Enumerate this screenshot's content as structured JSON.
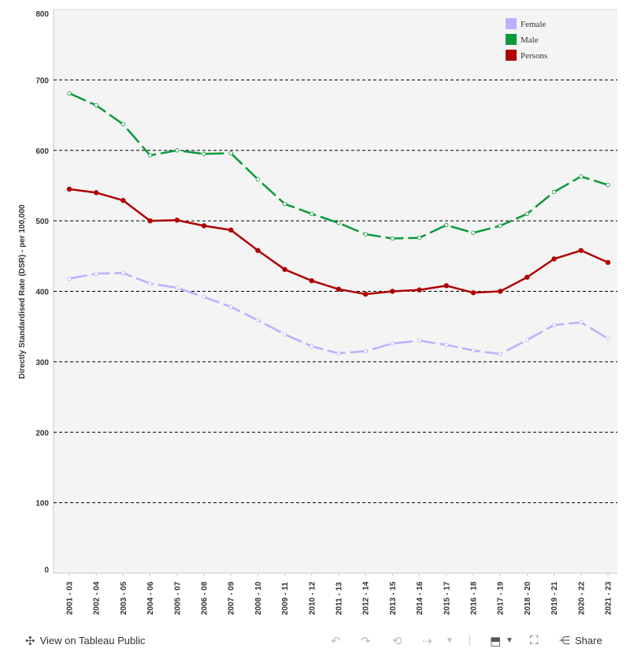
{
  "chart_data": {
    "type": "line",
    "title": "",
    "xlabel": "",
    "ylabel": "Directly Standardised Rate (DSR) - per 100,000",
    "ylim": [
      0,
      800
    ],
    "yticks": [
      0,
      100,
      200,
      300,
      400,
      500,
      600,
      700,
      800
    ],
    "categories": [
      "2001 - 03",
      "2002 - 04",
      "2003 - 05",
      "2004 - 06",
      "2005 - 07",
      "2006 - 08",
      "2007 - 09",
      "2008 - 10",
      "2009 - 11",
      "2010 - 12",
      "2011 - 13",
      "2012 - 14",
      "2013 - 15",
      "2014 - 16",
      "2015 - 17",
      "2016 - 18",
      "2017 - 19",
      "2018 - 20",
      "2019 - 21",
      "2020 - 22",
      "2021 - 23"
    ],
    "legend_position": "top-right",
    "grid": true,
    "series": [
      {
        "name": "Female",
        "color": "#bab0ff",
        "dashed": true,
        "values": [
          418,
          425,
          426,
          411,
          405,
          392,
          378,
          359,
          339,
          322,
          312,
          315,
          326,
          330,
          324,
          316,
          311,
          331,
          352,
          356,
          333
        ]
      },
      {
        "name": "Male",
        "color": "#0a9a3a",
        "dashed": true,
        "values": [
          681,
          664,
          637,
          593,
          600,
          595,
          596,
          559,
          524,
          510,
          497,
          481,
          475,
          476,
          494,
          483,
          493,
          510,
          541,
          563,
          551
        ]
      },
      {
        "name": "Persons",
        "color": "#b00000",
        "dashed": false,
        "values": [
          545,
          540,
          529,
          500,
          501,
          493,
          487,
          458,
          431,
          415,
          403,
          396,
          400,
          402,
          408,
          398,
          400,
          420,
          446,
          458,
          441
        ]
      }
    ]
  },
  "toolbar": {
    "view_label": "View on Tableau Public",
    "share_label": "Share",
    "icons": [
      "tableau-logo-icon",
      "undo-icon",
      "redo-icon",
      "revert-icon",
      "refresh-icon",
      "download-icon",
      "fullscreen-icon",
      "share-icon"
    ]
  }
}
